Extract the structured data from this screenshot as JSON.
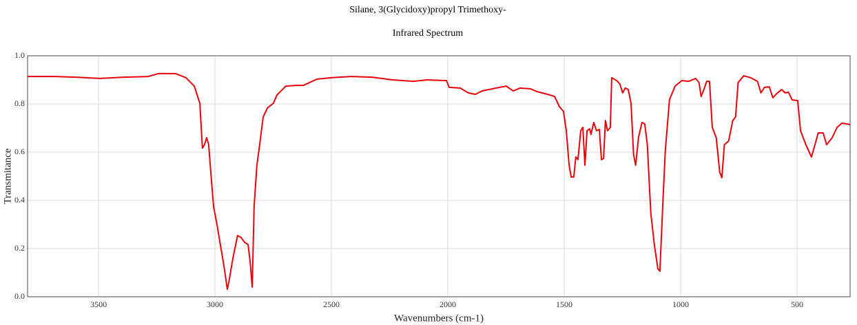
{
  "chart_data": {
    "type": "line",
    "title": "Silane, 3(Glycidoxy)propyl Trimethoxy-",
    "subtitle": "Infrared Spectrum",
    "x_label": "Wavenumbers (cm-1)",
    "y_label": "Transmitance",
    "xlim": [
      3805,
      272
    ],
    "ylim": [
      0,
      1
    ],
    "xticks": [
      3500,
      3000,
      2500,
      2000,
      1500,
      1000,
      500
    ],
    "yticks": [
      {
        "value": 0,
        "label": "0.0"
      },
      0.2,
      0.4,
      0.6,
      0.8,
      {
        "value": 1,
        "label": "1.0"
      }
    ],
    "grid": true,
    "series": [
      {
        "color": "#e8000b",
        "x": [
          3805,
          3687,
          3598,
          3494,
          3391,
          3287,
          3243,
          3169,
          3125,
          3089,
          3065,
          3054,
          3045,
          3036,
          3027,
          3018,
          3006,
          2992,
          2977,
          2962,
          2947,
          2938,
          2923,
          2903,
          2888,
          2873,
          2858,
          2849,
          2840,
          2832,
          2820,
          2808,
          2793,
          2775,
          2749,
          2734,
          2696,
          2651,
          2621,
          2562,
          2503,
          2414,
          2325,
          2237,
          2148,
          2089,
          2006,
          1994,
          1947,
          1912,
          1882,
          1853,
          1793,
          1749,
          1719,
          1690,
          1645,
          1616,
          1571,
          1541,
          1521,
          1503,
          1491,
          1479,
          1470,
          1459,
          1450,
          1441,
          1429,
          1420,
          1411,
          1402,
          1391,
          1385,
          1373,
          1361,
          1349,
          1340,
          1331,
          1323,
          1314,
          1302,
          1296,
          1275,
          1261,
          1249,
          1238,
          1225,
          1213,
          1202,
          1193,
          1181,
          1166,
          1154,
          1143,
          1128,
          1113,
          1098,
          1089,
          1077,
          1066,
          1048,
          1024,
          995,
          965,
          936,
          921,
          912,
          900,
          888,
          876,
          864,
          847,
          832,
          823,
          812,
          794,
          776,
          764,
          753,
          729,
          699,
          670,
          655,
          640,
          619,
          604,
          587,
          566,
          551,
          537,
          521,
          497,
          485,
          462,
          438,
          423,
          409,
          388,
          373,
          349,
          328,
          308,
          284,
          272
        ],
        "values": [
          0.914,
          0.914,
          0.911,
          0.906,
          0.911,
          0.914,
          0.926,
          0.926,
          0.909,
          0.874,
          0.803,
          0.617,
          0.631,
          0.66,
          0.631,
          0.517,
          0.374,
          0.303,
          0.217,
          0.131,
          0.031,
          0.074,
          0.16,
          0.254,
          0.246,
          0.226,
          0.217,
          0.146,
          0.04,
          0.374,
          0.546,
          0.631,
          0.746,
          0.783,
          0.803,
          0.837,
          0.874,
          0.877,
          0.877,
          0.903,
          0.909,
          0.914,
          0.911,
          0.9,
          0.894,
          0.9,
          0.897,
          0.869,
          0.866,
          0.846,
          0.84,
          0.854,
          0.866,
          0.874,
          0.854,
          0.866,
          0.863,
          0.851,
          0.84,
          0.831,
          0.789,
          0.769,
          0.689,
          0.546,
          0.497,
          0.497,
          0.58,
          0.569,
          0.689,
          0.703,
          0.546,
          0.689,
          0.697,
          0.674,
          0.723,
          0.689,
          0.694,
          0.569,
          0.574,
          0.731,
          0.689,
          0.703,
          0.909,
          0.897,
          0.883,
          0.846,
          0.866,
          0.86,
          0.803,
          0.589,
          0.546,
          0.66,
          0.723,
          0.717,
          0.631,
          0.346,
          0.217,
          0.117,
          0.106,
          0.374,
          0.603,
          0.817,
          0.874,
          0.897,
          0.894,
          0.906,
          0.889,
          0.831,
          0.86,
          0.894,
          0.894,
          0.703,
          0.66,
          0.517,
          0.494,
          0.631,
          0.646,
          0.731,
          0.746,
          0.889,
          0.917,
          0.909,
          0.894,
          0.846,
          0.869,
          0.871,
          0.826,
          0.843,
          0.86,
          0.846,
          0.849,
          0.817,
          0.814,
          0.689,
          0.631,
          0.58,
          0.631,
          0.68,
          0.68,
          0.631,
          0.66,
          0.703,
          0.72,
          0.717,
          0.714
        ]
      }
    ]
  }
}
